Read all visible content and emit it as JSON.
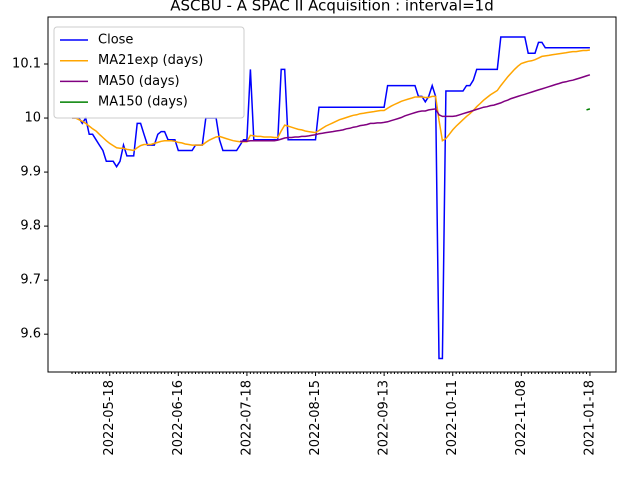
{
  "chart_data": {
    "type": "line",
    "title": "ASCBU - A SPAC II Acquisition : interval=1d",
    "categories": [
      null,
      null,
      null,
      null,
      null,
      null,
      null,
      null,
      null,
      null,
      null,
      "2022-05-18",
      null,
      null,
      null,
      null,
      null,
      null,
      null,
      null,
      null,
      null,
      null,
      null,
      null,
      null,
      null,
      null,
      null,
      null,
      null,
      "2022-06-16",
      null,
      null,
      null,
      null,
      null,
      null,
      null,
      null,
      null,
      null,
      null,
      null,
      null,
      null,
      null,
      null,
      null,
      null,
      null,
      "2022-07-18",
      null,
      null,
      null,
      null,
      null,
      null,
      null,
      null,
      null,
      null,
      null,
      null,
      null,
      null,
      null,
      null,
      null,
      null,
      null,
      "2022-08-15",
      null,
      null,
      null,
      null,
      null,
      null,
      null,
      null,
      null,
      null,
      null,
      null,
      null,
      null,
      null,
      null,
      null,
      null,
      null,
      "2022-09-13",
      null,
      null,
      null,
      null,
      null,
      null,
      null,
      null,
      null,
      null,
      null,
      null,
      null,
      null,
      null,
      null,
      null,
      null,
      null,
      "2022-10-11",
      null,
      null,
      null,
      null,
      null,
      null,
      null,
      null,
      null,
      null,
      null,
      null,
      null,
      null,
      null,
      null,
      null,
      null,
      null,
      "2022-11-08",
      null,
      null,
      null,
      null,
      null,
      null,
      null,
      null,
      null,
      null,
      null,
      null,
      null,
      null,
      null,
      null,
      null,
      null,
      null,
      "2021-01-18"
    ],
    "series": [
      {
        "name": "Close",
        "color": "#0000ff",
        "values": [
          10.0,
          10.0,
          10.0,
          9.99,
          10.0,
          9.97,
          9.97,
          9.96,
          9.95,
          9.94,
          9.92,
          9.92,
          9.92,
          9.91,
          9.92,
          9.95,
          9.93,
          9.93,
          9.93,
          9.99,
          9.99,
          9.97,
          9.95,
          9.95,
          9.95,
          9.97,
          9.975,
          9.975,
          9.96,
          9.96,
          9.96,
          9.94,
          9.94,
          9.94,
          9.94,
          9.94,
          9.95,
          9.95,
          9.95,
          10.0,
          10.0,
          10.0,
          10.0,
          9.96,
          9.94,
          9.94,
          9.94,
          9.94,
          9.94,
          9.95,
          9.96,
          9.96,
          10.09,
          9.96,
          9.96,
          9.96,
          9.96,
          9.96,
          9.96,
          9.96,
          9.96,
          10.09,
          10.09,
          9.96,
          9.96,
          9.96,
          9.96,
          9.96,
          9.96,
          9.96,
          9.96,
          9.96,
          10.02,
          10.02,
          10.02,
          10.02,
          10.02,
          10.02,
          10.02,
          10.02,
          10.02,
          10.02,
          10.02,
          10.02,
          10.02,
          10.02,
          10.02,
          10.02,
          10.02,
          10.02,
          10.02,
          10.02,
          10.06,
          10.06,
          10.06,
          10.06,
          10.06,
          10.06,
          10.06,
          10.06,
          10.06,
          10.04,
          10.04,
          10.03,
          10.04,
          10.06,
          10.04,
          9.555,
          9.555,
          10.05,
          10.05,
          10.05,
          10.05,
          10.05,
          10.05,
          10.06,
          10.06,
          10.07,
          10.09,
          10.09,
          10.09,
          10.09,
          10.09,
          10.09,
          10.09,
          10.15,
          10.15,
          10.15,
          10.15,
          10.15,
          10.15,
          10.15,
          10.15,
          10.12,
          10.12,
          10.12,
          10.14,
          10.14,
          10.13,
          10.13,
          10.13,
          10.13,
          10.13,
          10.13,
          10.13,
          10.13,
          10.13,
          10.13,
          10.13,
          10.13,
          10.13,
          10.13
        ]
      },
      {
        "name": "MA21exp (days)",
        "color": "#ffa500",
        "values": [
          10.0,
          10.0,
          9.997,
          9.994,
          9.99,
          9.985,
          9.98,
          9.976,
          9.97,
          9.964,
          9.958,
          9.953,
          9.949,
          9.945,
          9.944,
          9.944,
          9.942,
          9.941,
          9.94,
          9.945,
          9.949,
          9.951,
          9.951,
          9.951,
          9.953,
          9.955,
          9.957,
          9.958,
          9.958,
          9.958,
          9.957,
          9.955,
          9.954,
          9.952,
          9.951,
          9.95,
          9.95,
          9.95,
          9.95,
          9.955,
          9.959,
          9.962,
          9.965,
          9.966,
          9.964,
          9.962,
          9.96,
          9.958,
          9.957,
          9.956,
          9.956,
          9.956,
          9.968,
          9.967,
          9.966,
          9.966,
          9.965,
          9.965,
          9.965,
          9.964,
          9.964,
          9.976,
          9.987,
          9.985,
          9.983,
          9.981,
          9.979,
          9.978,
          9.976,
          9.975,
          9.974,
          9.973,
          9.977,
          9.981,
          9.985,
          9.988,
          9.991,
          9.994,
          9.997,
          9.999,
          10.001,
          10.003,
          10.005,
          10.006,
          10.008,
          10.009,
          10.01,
          10.011,
          10.012,
          10.013,
          10.014,
          10.014,
          10.018,
          10.022,
          10.025,
          10.028,
          10.031,
          10.033,
          10.035,
          10.037,
          10.039,
          10.039,
          10.039,
          10.038,
          10.038,
          10.04,
          10.04,
          9.996,
          9.958,
          9.962,
          9.97,
          9.978,
          9.985,
          9.991,
          9.997,
          10.003,
          10.008,
          10.014,
          10.021,
          10.027,
          10.033,
          10.038,
          10.043,
          10.047,
          10.051,
          10.06,
          10.068,
          10.076,
          10.083,
          10.09,
          10.096,
          10.101,
          10.103,
          10.105,
          10.106,
          10.108,
          10.111,
          10.114,
          10.115,
          10.116,
          10.117,
          10.118,
          10.119,
          10.12,
          10.121,
          10.122,
          10.123,
          10.123,
          10.124,
          10.125,
          10.125,
          10.126
        ]
      },
      {
        "name": "MA50 (days)",
        "color": "#800080",
        "values": [
          null,
          null,
          null,
          null,
          null,
          null,
          null,
          null,
          null,
          null,
          null,
          null,
          null,
          null,
          null,
          null,
          null,
          null,
          null,
          null,
          null,
          null,
          null,
          null,
          null,
          null,
          null,
          null,
          null,
          null,
          null,
          null,
          null,
          null,
          null,
          null,
          null,
          null,
          null,
          null,
          null,
          null,
          null,
          null,
          null,
          null,
          null,
          null,
          null,
          9.957,
          9.957,
          9.957,
          9.958,
          9.958,
          9.958,
          9.958,
          9.958,
          9.958,
          9.958,
          9.958,
          9.959,
          9.961,
          9.963,
          9.964,
          9.964,
          9.965,
          9.965,
          9.966,
          9.966,
          9.967,
          9.968,
          9.969,
          9.971,
          9.972,
          9.973,
          9.974,
          9.975,
          9.976,
          9.977,
          9.978,
          9.98,
          9.981,
          9.983,
          9.984,
          9.986,
          9.987,
          9.988,
          9.99,
          9.99,
          9.991,
          9.991,
          9.992,
          9.993,
          9.995,
          9.997,
          9.999,
          10.001,
          10.004,
          10.006,
          10.008,
          10.01,
          10.012,
          10.013,
          10.013,
          10.015,
          10.016,
          10.017,
          10.006,
          10.003,
          10.003,
          10.003,
          10.003,
          10.004,
          10.006,
          10.008,
          10.01,
          10.012,
          10.014,
          10.016,
          10.018,
          10.02,
          10.021,
          10.023,
          10.024,
          10.026,
          10.028,
          10.031,
          10.033,
          10.036,
          10.038,
          10.04,
          10.042,
          10.044,
          10.046,
          10.048,
          10.05,
          10.052,
          10.054,
          10.056,
          10.058,
          10.06,
          10.062,
          10.064,
          10.066,
          10.067,
          10.069,
          10.07,
          10.072,
          10.074,
          10.076,
          10.078,
          10.08
        ]
      },
      {
        "name": "MA150 (days)",
        "color": "#008000",
        "values": [
          null,
          null,
          null,
          null,
          null,
          null,
          null,
          null,
          null,
          null,
          null,
          null,
          null,
          null,
          null,
          null,
          null,
          null,
          null,
          null,
          null,
          null,
          null,
          null,
          null,
          null,
          null,
          null,
          null,
          null,
          null,
          null,
          null,
          null,
          null,
          null,
          null,
          null,
          null,
          null,
          null,
          null,
          null,
          null,
          null,
          null,
          null,
          null,
          null,
          null,
          null,
          null,
          null,
          null,
          null,
          null,
          null,
          null,
          null,
          null,
          null,
          null,
          null,
          null,
          null,
          null,
          null,
          null,
          null,
          null,
          null,
          null,
          null,
          null,
          null,
          null,
          null,
          null,
          null,
          null,
          null,
          null,
          null,
          null,
          null,
          null,
          null,
          null,
          null,
          null,
          null,
          null,
          null,
          null,
          null,
          null,
          null,
          null,
          null,
          null,
          null,
          null,
          null,
          null,
          null,
          null,
          null,
          null,
          null,
          null,
          null,
          null,
          null,
          null,
          null,
          null,
          null,
          null,
          null,
          null,
          null,
          null,
          null,
          null,
          null,
          null,
          null,
          null,
          null,
          null,
          null,
          null,
          null,
          null,
          null,
          null,
          null,
          null,
          null,
          null,
          null,
          null,
          null,
          null,
          null,
          null,
          null,
          null,
          null,
          null,
          10.015,
          10.017
        ]
      }
    ],
    "ylim": [
      9.53,
      10.187
    ],
    "yticks": [
      9.6,
      9.7,
      9.8,
      9.9,
      10.0,
      10.1
    ],
    "grid": false,
    "legend": "upper left"
  }
}
